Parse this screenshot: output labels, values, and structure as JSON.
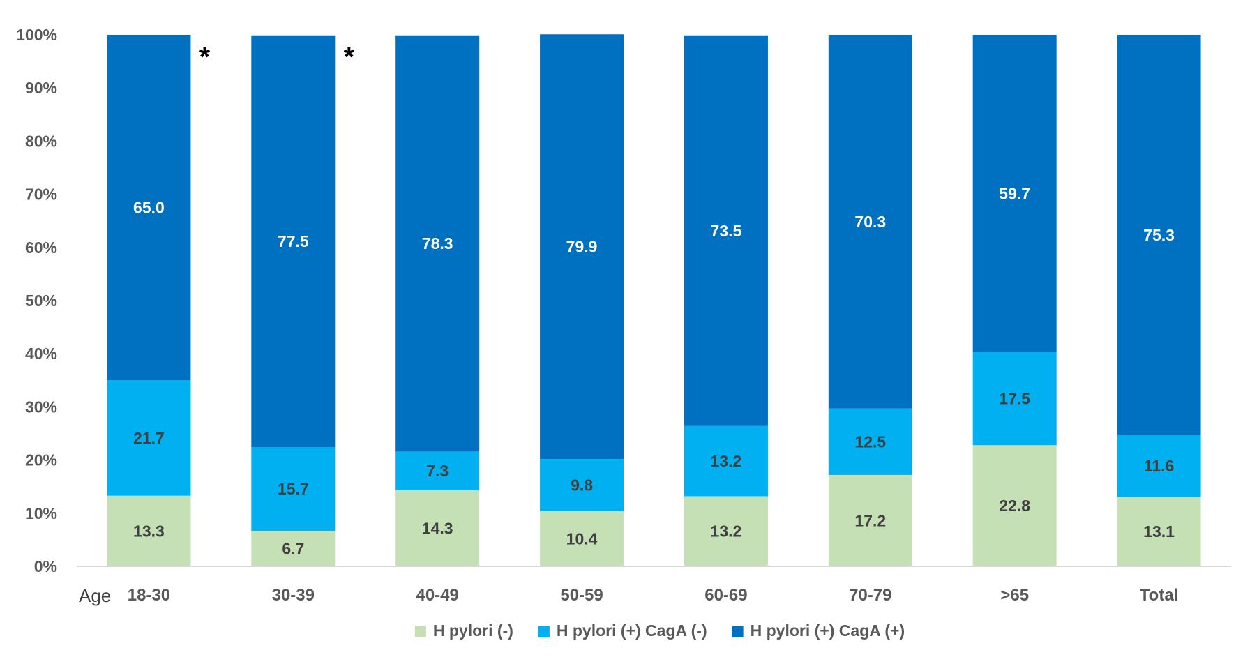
{
  "chart_data": {
    "type": "bar",
    "stacked": true,
    "percent": true,
    "categories": [
      "18-30",
      "30-39",
      "40-49",
      "50-59",
      "60-69",
      "70-79",
      ">65",
      "Total"
    ],
    "x_axis_prefix": "Age",
    "yticks": [
      "0%",
      "10%",
      "20%",
      "30%",
      "40%",
      "50%",
      "60%",
      "70%",
      "80%",
      "90%",
      "100%"
    ],
    "ylim": [
      0,
      100
    ],
    "series": [
      {
        "name": "H pylori (-)",
        "color": "#c5e0b4",
        "label_color": "#404040",
        "values": [
          13.3,
          6.7,
          14.3,
          10.4,
          13.2,
          17.2,
          22.8,
          13.1
        ]
      },
      {
        "name": "H pylori (+) CagA (-)",
        "color": "#00b0f0",
        "label_color": "#404040",
        "values": [
          21.7,
          15.7,
          7.3,
          9.8,
          13.2,
          12.5,
          17.5,
          11.6
        ]
      },
      {
        "name": "H pylori (+) CagA (+)",
        "color": "#0070c0",
        "label_color": "#ffffff",
        "values": [
          65.0,
          77.5,
          78.3,
          79.9,
          73.5,
          70.3,
          59.7,
          75.3
        ]
      }
    ],
    "annotations": [
      {
        "category": "18-30",
        "text": "*"
      },
      {
        "category": "30-39",
        "text": "*"
      }
    ],
    "legend": "bottom",
    "grid": false
  }
}
